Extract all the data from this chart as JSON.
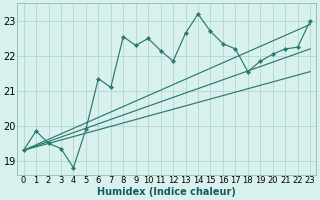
{
  "xlabel": "Humidex (Indice chaleur)",
  "x_data": [
    0,
    1,
    2,
    3,
    4,
    5,
    6,
    7,
    8,
    9,
    10,
    11,
    12,
    13,
    14,
    15,
    16,
    17,
    18,
    19,
    20,
    21,
    22,
    23
  ],
  "y_main": [
    19.3,
    19.85,
    19.5,
    19.35,
    18.8,
    19.9,
    21.35,
    21.1,
    22.55,
    22.3,
    22.5,
    22.15,
    21.85,
    22.65,
    23.2,
    22.7,
    22.35,
    22.2,
    21.55,
    21.85,
    22.05,
    22.2,
    22.25,
    23.0
  ],
  "line_color": "#2a7a6a",
  "bg_color": "#d8f0ee",
  "grid_color": "#b0d8d4",
  "ylim": [
    18.6,
    23.5
  ],
  "yticks": [
    19,
    20,
    21,
    22,
    23
  ],
  "xlim": [
    -0.5,
    23.5
  ],
  "regression_lines": [
    {
      "x0": 0,
      "y0": 19.3,
      "x1": 23,
      "y1": 22.9
    },
    {
      "x0": 0,
      "y0": 19.3,
      "x1": 23,
      "y1": 22.2
    },
    {
      "x0": 0,
      "y0": 19.3,
      "x1": 23,
      "y1": 21.55
    }
  ],
  "tick_fontsize": 6,
  "xlabel_fontsize": 7,
  "xlabel_color": "#1a5a5a"
}
